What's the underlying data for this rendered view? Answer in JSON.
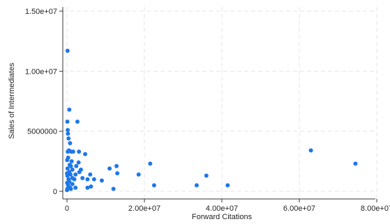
{
  "chart_data": {
    "type": "scatter",
    "title": "",
    "xlabel": "Forward Citations",
    "ylabel": "Sales of Intermediates",
    "xlim": [
      0,
      80000000
    ],
    "ylim": [
      0,
      15000000
    ],
    "x_ticks": [
      {
        "value": 0,
        "label": "0"
      },
      {
        "value": 20000000,
        "label": "2.00e+07"
      },
      {
        "value": 40000000,
        "label": "4.00e+07"
      },
      {
        "value": 60000000,
        "label": "6.00e+07"
      },
      {
        "value": 80000000,
        "label": "8.00e+07"
      }
    ],
    "y_ticks": [
      {
        "value": 0,
        "label": "0"
      },
      {
        "value": 5000000,
        "label": "5000000"
      },
      {
        "value": 10000000,
        "label": "1.00e+07"
      },
      {
        "value": 15000000,
        "label": "1.50e+07"
      }
    ],
    "grid": true,
    "legend": "none",
    "marker_color": "#1f77e8",
    "series": [
      {
        "name": "",
        "points": [
          [
            74500000,
            2300000
          ],
          [
            63000000,
            3400000
          ],
          [
            41500000,
            500000
          ],
          [
            36000000,
            1300000
          ],
          [
            33500000,
            500000
          ],
          [
            22500000,
            500000
          ],
          [
            21500000,
            2300000
          ],
          [
            18500000,
            1400000
          ],
          [
            13000000,
            1500000
          ],
          [
            12800000,
            2100000
          ],
          [
            11000000,
            1900000
          ],
          [
            12000000,
            200000
          ],
          [
            9000000,
            900000
          ],
          [
            7000000,
            1000000
          ],
          [
            6000000,
            1400000
          ],
          [
            6200000,
            400000
          ],
          [
            5300000,
            1000000
          ],
          [
            5300000,
            300000
          ],
          [
            4700000,
            3100000
          ],
          [
            4000000,
            1100000
          ],
          [
            3600000,
            1800000
          ],
          [
            3200000,
            1600000
          ],
          [
            3000000,
            2400000
          ],
          [
            3100000,
            3300000
          ],
          [
            2700000,
            5800000
          ],
          [
            2400000,
            2100000
          ],
          [
            2200000,
            1400000
          ],
          [
            2200000,
            300000
          ],
          [
            1900000,
            1000000
          ],
          [
            1600000,
            3300000
          ],
          [
            1400000,
            1800000
          ],
          [
            1400000,
            1100000
          ],
          [
            1400000,
            600000
          ],
          [
            1200000,
            2500000
          ],
          [
            1100000,
            3300000
          ],
          [
            1000000,
            2100000
          ],
          [
            1000000,
            200000
          ],
          [
            900000,
            1400000
          ],
          [
            800000,
            4000000
          ],
          [
            800000,
            300000
          ],
          [
            700000,
            2200000
          ],
          [
            600000,
            6800000
          ],
          [
            600000,
            1600000
          ],
          [
            600000,
            800000
          ],
          [
            500000,
            3400000
          ],
          [
            400000,
            4400000
          ],
          [
            400000,
            1000000
          ],
          [
            300000,
            2800000
          ],
          [
            300000,
            500000
          ],
          [
            250000,
            4800000
          ],
          [
            200000,
            5100000
          ],
          [
            200000,
            3300000
          ],
          [
            150000,
            11700000
          ],
          [
            150000,
            1900000
          ],
          [
            100000,
            5800000
          ],
          [
            100000,
            1300000
          ],
          [
            100000,
            200000
          ],
          [
            50000,
            2600000
          ],
          [
            50000,
            700000
          ],
          [
            20000,
            1500000
          ],
          [
            20000,
            100000
          ]
        ]
      }
    ]
  }
}
